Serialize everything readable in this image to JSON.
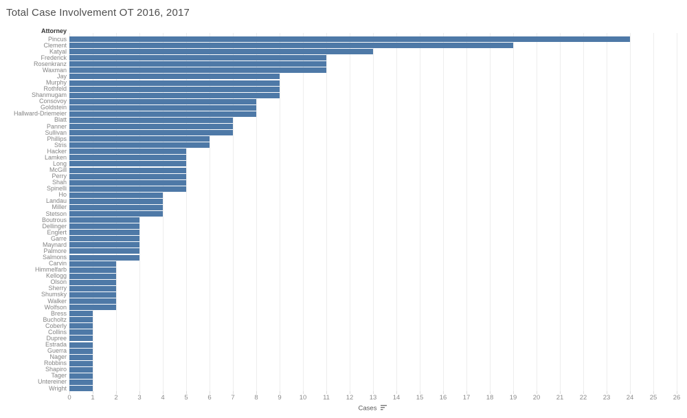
{
  "title": "Total Case Involvement OT 2016, 2017",
  "axis": {
    "y_header": "Attorney",
    "x_label": "Cases",
    "sort_icon": "sort-descending-icon"
  },
  "colors": {
    "bar": "#4e79a7",
    "gridline": "#ededed",
    "y_label": "#848484",
    "x_tick": "#8a8a8a",
    "title": "#4d4d4d"
  },
  "chart_data": {
    "type": "bar",
    "orientation": "horizontal",
    "title": "Total Case Involvement OT 2016, 2017",
    "xlabel": "Cases",
    "ylabel": "Attorney",
    "xlim": [
      0,
      26
    ],
    "tick_step": 1,
    "grid": true,
    "legend": false,
    "sort": "descending",
    "categories": [
      "Pincus",
      "Clement",
      "Katyal",
      "Frederick",
      "Rosenkranz",
      "Waxman",
      "Jay",
      "Murphy",
      "Rothfeld",
      "Shanmugam",
      "Consovoy",
      "Goldstein",
      "Hallward-Driemeier",
      "Blatt",
      "Panner",
      "Sullivan",
      "Phillips",
      "Stris",
      "Hacker",
      "Lamken",
      "Long",
      "McGill",
      "Perry",
      "Shah",
      "Spinelli",
      "Ho",
      "Landau",
      "Miller",
      "Stetson",
      "Boutrous",
      "Dellinger",
      "Englert",
      "Garre",
      "Maynard",
      "Palmore",
      "Salmons",
      "Carvin",
      "Himmelfarb",
      "Kellogg",
      "Olson",
      "Sherry",
      "Shumsky",
      "Walker",
      "Wolfson",
      "Bress",
      "Bucholtz",
      "Coberly",
      "Collins",
      "Dupree",
      "Estrada",
      "Guerra",
      "Nager",
      "Robbins",
      "Shapiro",
      "Tager",
      "Untereiner",
      "Wright"
    ],
    "values": [
      24,
      19,
      13,
      11,
      11,
      11,
      9,
      9,
      9,
      9,
      8,
      8,
      8,
      7,
      7,
      7,
      6,
      6,
      5,
      5,
      5,
      5,
      5,
      5,
      5,
      4,
      4,
      4,
      4,
      3,
      3,
      3,
      3,
      3,
      3,
      3,
      2,
      2,
      2,
      2,
      2,
      2,
      2,
      2,
      1,
      1,
      1,
      1,
      1,
      1,
      1,
      1,
      1,
      1,
      1,
      1,
      1
    ]
  }
}
